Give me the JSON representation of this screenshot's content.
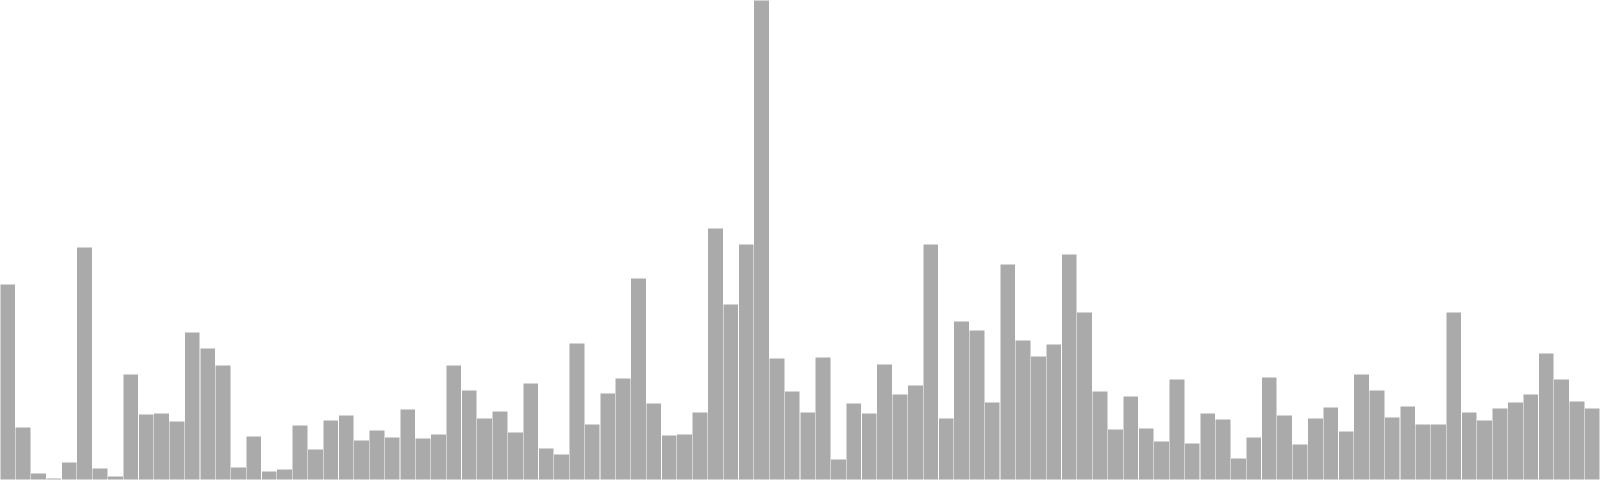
{
  "chart_data": {
    "type": "bar",
    "title": "",
    "xlabel": "",
    "ylabel": "",
    "ylim": [
      0,
      480
    ],
    "grid": false,
    "legend": "none",
    "colors": {
      "bar_fill": "#aaaaaa",
      "bar_stroke": "#ffffff",
      "background": "#ffffff"
    },
    "values": [
      196,
      53,
      7,
      2,
      18,
      233,
      12,
      4,
      106,
      66,
      67,
      59,
      148,
      132,
      115,
      13,
      44,
      9,
      11,
      55,
      31,
      60,
      65,
      40,
      50,
      43,
      71,
      42,
      46,
      115,
      90,
      62,
      69,
      48,
      97,
      32,
      26,
      137,
      56,
      87,
      102,
      202,
      77,
      45,
      46,
      68,
      252,
      176,
      236,
      480,
      122,
      89,
      68,
      123,
      21,
      77,
      67,
      116,
      86,
      95,
      236,
      62,
      159,
      150,
      78,
      216,
      140,
      124,
      136,
      226,
      168,
      89,
      51,
      84,
      52,
      39,
      101,
      37,
      67,
      61,
      22,
      43,
      103,
      65,
      36,
      62,
      73,
      49,
      106,
      90,
      63,
      74,
      56,
      56,
      168,
      68,
      60,
      72,
      78,
      86,
      127,
      101,
      79,
      72
    ]
  }
}
